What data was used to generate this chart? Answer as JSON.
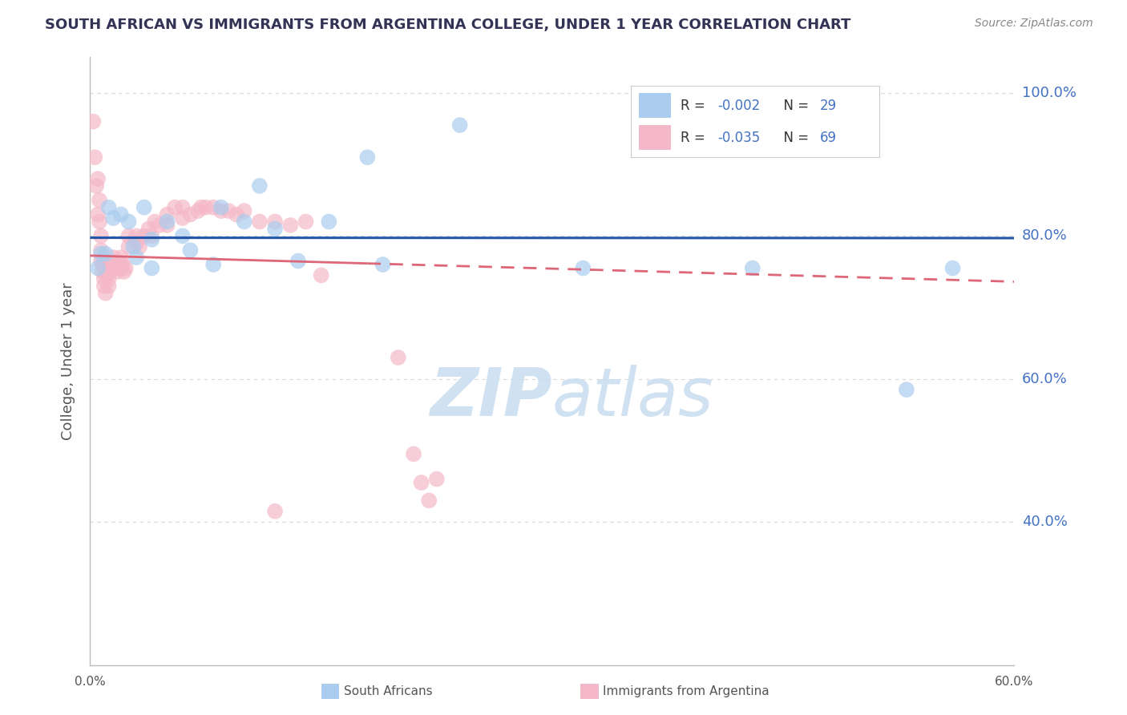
{
  "title": "SOUTH AFRICAN VS IMMIGRANTS FROM ARGENTINA COLLEGE, UNDER 1 YEAR CORRELATION CHART",
  "source": "Source: ZipAtlas.com",
  "ylabel": "College, Under 1 year",
  "xlim": [
    0.0,
    0.6
  ],
  "ylim": [
    0.2,
    1.05
  ],
  "xtick_values": [
    0.0,
    0.2,
    0.4,
    0.6
  ],
  "xtick_labels": [
    "0.0%",
    "",
    "",
    "60.0%"
  ],
  "ytick_values": [
    0.4,
    0.6,
    0.8,
    1.0
  ],
  "ytick_labels": [
    "40.0%",
    "60.0%",
    "80.0%",
    "100.0%"
  ],
  "background_color": "#ffffff",
  "grid_color": "#d8d8d8",
  "blue_color": "#aaccee",
  "pink_color": "#f5b8c8",
  "blue_line_color": "#2255aa",
  "pink_line_color": "#dd6677",
  "blue_scatter": [
    [
      0.005,
      0.755
    ],
    [
      0.007,
      0.775
    ],
    [
      0.01,
      0.775
    ],
    [
      0.012,
      0.84
    ],
    [
      0.015,
      0.825
    ],
    [
      0.02,
      0.83
    ],
    [
      0.025,
      0.82
    ],
    [
      0.028,
      0.785
    ],
    [
      0.03,
      0.77
    ],
    [
      0.035,
      0.84
    ],
    [
      0.04,
      0.795
    ],
    [
      0.04,
      0.755
    ],
    [
      0.05,
      0.82
    ],
    [
      0.06,
      0.8
    ],
    [
      0.065,
      0.78
    ],
    [
      0.08,
      0.76
    ],
    [
      0.085,
      0.84
    ],
    [
      0.1,
      0.82
    ],
    [
      0.11,
      0.87
    ],
    [
      0.12,
      0.81
    ],
    [
      0.135,
      0.765
    ],
    [
      0.155,
      0.82
    ],
    [
      0.18,
      0.91
    ],
    [
      0.19,
      0.76
    ],
    [
      0.24,
      0.955
    ],
    [
      0.32,
      0.755
    ],
    [
      0.43,
      0.755
    ],
    [
      0.53,
      0.585
    ],
    [
      0.56,
      0.755
    ]
  ],
  "pink_scatter": [
    [
      0.002,
      0.96
    ],
    [
      0.003,
      0.91
    ],
    [
      0.004,
      0.87
    ],
    [
      0.005,
      0.83
    ],
    [
      0.005,
      0.88
    ],
    [
      0.006,
      0.85
    ],
    [
      0.006,
      0.82
    ],
    [
      0.007,
      0.8
    ],
    [
      0.007,
      0.78
    ],
    [
      0.007,
      0.765
    ],
    [
      0.008,
      0.75
    ],
    [
      0.008,
      0.76
    ],
    [
      0.009,
      0.74
    ],
    [
      0.009,
      0.73
    ],
    [
      0.01,
      0.72
    ],
    [
      0.01,
      0.76
    ],
    [
      0.011,
      0.755
    ],
    [
      0.011,
      0.745
    ],
    [
      0.012,
      0.74
    ],
    [
      0.012,
      0.73
    ],
    [
      0.013,
      0.76
    ],
    [
      0.013,
      0.75
    ],
    [
      0.014,
      0.755
    ],
    [
      0.015,
      0.76
    ],
    [
      0.015,
      0.77
    ],
    [
      0.016,
      0.76
    ],
    [
      0.017,
      0.755
    ],
    [
      0.018,
      0.75
    ],
    [
      0.019,
      0.76
    ],
    [
      0.02,
      0.77
    ],
    [
      0.02,
      0.755
    ],
    [
      0.021,
      0.76
    ],
    [
      0.022,
      0.75
    ],
    [
      0.023,
      0.755
    ],
    [
      0.025,
      0.8
    ],
    [
      0.025,
      0.785
    ],
    [
      0.03,
      0.8
    ],
    [
      0.03,
      0.79
    ],
    [
      0.032,
      0.785
    ],
    [
      0.035,
      0.8
    ],
    [
      0.038,
      0.81
    ],
    [
      0.04,
      0.8
    ],
    [
      0.042,
      0.82
    ],
    [
      0.045,
      0.815
    ],
    [
      0.05,
      0.83
    ],
    [
      0.05,
      0.815
    ],
    [
      0.055,
      0.84
    ],
    [
      0.06,
      0.84
    ],
    [
      0.06,
      0.825
    ],
    [
      0.065,
      0.83
    ],
    [
      0.07,
      0.835
    ],
    [
      0.072,
      0.84
    ],
    [
      0.075,
      0.84
    ],
    [
      0.08,
      0.84
    ],
    [
      0.085,
      0.835
    ],
    [
      0.09,
      0.835
    ],
    [
      0.095,
      0.83
    ],
    [
      0.1,
      0.835
    ],
    [
      0.11,
      0.82
    ],
    [
      0.12,
      0.82
    ],
    [
      0.13,
      0.815
    ],
    [
      0.14,
      0.82
    ],
    [
      0.15,
      0.745
    ],
    [
      0.2,
      0.63
    ],
    [
      0.21,
      0.495
    ],
    [
      0.215,
      0.455
    ],
    [
      0.22,
      0.43
    ],
    [
      0.225,
      0.46
    ],
    [
      0.12,
      0.415
    ]
  ],
  "blue_R": -0.002,
  "blue_N": 29,
  "pink_R": -0.035,
  "pink_N": 69,
  "legend_labels": [
    "South Africans",
    "Immigrants from Argentina"
  ],
  "watermark_text": "ZIPatlas",
  "watermark_zip_color": "#c8ddf0",
  "watermark_atlas_color": "#c8ddf0"
}
